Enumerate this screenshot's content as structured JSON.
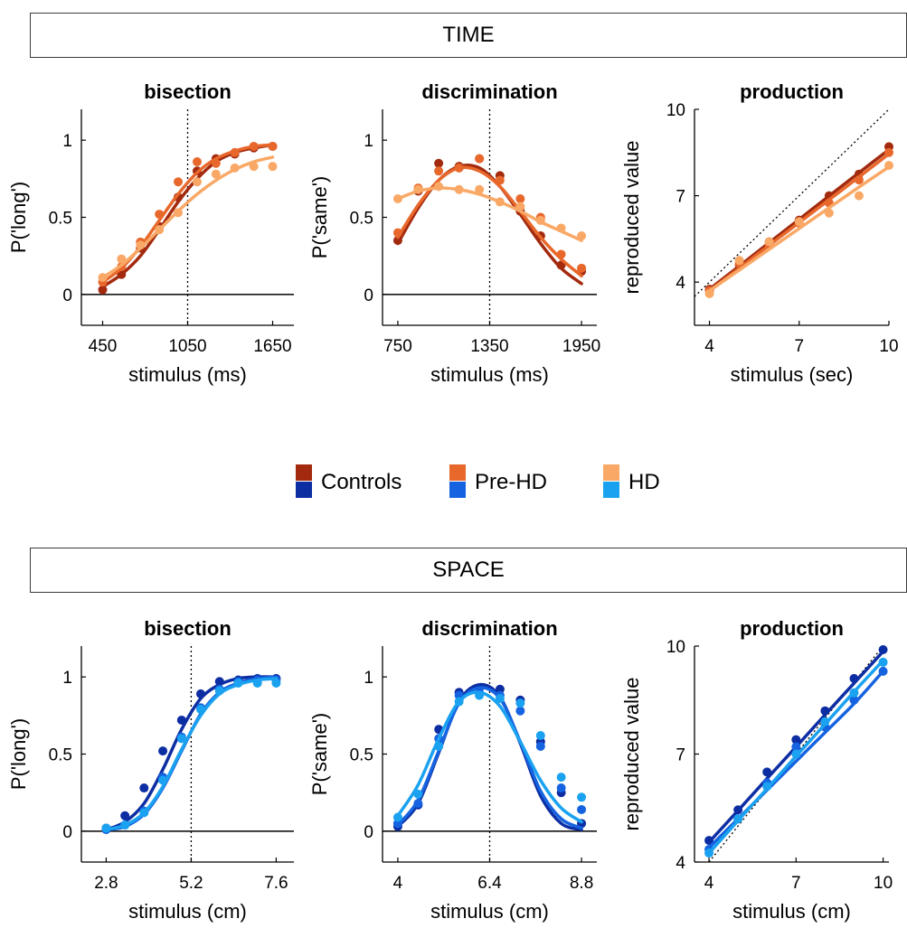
{
  "sections": {
    "time_label": "TIME",
    "space_label": "SPACE"
  },
  "legend": {
    "items": [
      {
        "label": "Controls",
        "time_color": "#a32a0e",
        "space_color": "#0d2ea3"
      },
      {
        "label": "Pre-HD",
        "time_color": "#e8682c",
        "space_color": "#1563e0"
      },
      {
        "label": "HD",
        "time_color": "#f9a866",
        "space_color": "#1aa2f0"
      }
    ]
  },
  "chart_data": [
    {
      "type": "line",
      "section": "time",
      "title": "bisection",
      "xlabel": "stimulus (ms)",
      "ylabel": "P('long')",
      "xlim": [
        300,
        1800
      ],
      "ylim": [
        -0.2,
        1.2
      ],
      "xticks": [
        450,
        1050,
        1650
      ],
      "xtick_labels": [
        "450",
        "1050",
        "1650"
      ],
      "yticks": [
        0,
        0.5,
        1
      ],
      "ytick_labels": [
        "0",
        "0.5",
        "1"
      ],
      "reference_vline": 1050,
      "reference_hline": 0,
      "x": [
        450,
        583,
        717,
        850,
        983,
        1117,
        1250,
        1383,
        1517,
        1650
      ],
      "series": [
        {
          "name": "Controls",
          "color": "#a32a0e",
          "points": [
            0.03,
            0.13,
            0.3,
            0.44,
            0.63,
            0.8,
            0.88,
            0.91,
            0.95,
            0.96
          ],
          "fit": [
            0.05,
            0.13,
            0.25,
            0.42,
            0.6,
            0.75,
            0.86,
            0.92,
            0.95,
            0.97
          ]
        },
        {
          "name": "Pre-HD",
          "color": "#e8682c",
          "points": [
            0.08,
            0.18,
            0.34,
            0.52,
            0.73,
            0.86,
            0.85,
            0.92,
            0.96,
            0.96
          ],
          "fit": [
            0.08,
            0.17,
            0.31,
            0.48,
            0.65,
            0.79,
            0.88,
            0.93,
            0.96,
            0.97
          ]
        },
        {
          "name": "HD",
          "color": "#f9a866",
          "points": [
            0.11,
            0.23,
            0.32,
            0.42,
            0.53,
            0.73,
            0.78,
            0.82,
            0.83,
            0.83
          ],
          "fit": [
            0.11,
            0.19,
            0.3,
            0.42,
            0.54,
            0.65,
            0.74,
            0.81,
            0.86,
            0.89
          ]
        }
      ]
    },
    {
      "type": "line",
      "section": "time",
      "title": "discrimination",
      "xlabel": "stimulus (ms)",
      "ylabel": "P('same')",
      "xlim": [
        650,
        2050
      ],
      "ylim": [
        -0.2,
        1.2
      ],
      "xticks": [
        750,
        1350,
        1950
      ],
      "xtick_labels": [
        "750",
        "1350",
        "1950"
      ],
      "yticks": [
        0,
        0.5,
        1
      ],
      "ytick_labels": [
        "0",
        "0.5",
        "1"
      ],
      "reference_vline": 1350,
      "reference_hline": 0,
      "x": [
        750,
        883,
        1017,
        1150,
        1283,
        1417,
        1550,
        1683,
        1817,
        1950
      ],
      "series": [
        {
          "name": "Controls",
          "color": "#a32a0e",
          "points": [
            0.35,
            0.67,
            0.85,
            0.83,
            0.88,
            0.77,
            0.54,
            0.38,
            0.19,
            0.15
          ],
          "fit": [
            0.33,
            0.56,
            0.74,
            0.83,
            0.82,
            0.7,
            0.52,
            0.33,
            0.17,
            0.07
          ]
        },
        {
          "name": "Pre-HD",
          "color": "#e8682c",
          "points": [
            0.4,
            0.69,
            0.8,
            0.82,
            0.88,
            0.74,
            0.62,
            0.5,
            0.26,
            0.17
          ],
          "fit": [
            0.37,
            0.58,
            0.74,
            0.82,
            0.8,
            0.7,
            0.54,
            0.37,
            0.23,
            0.12
          ]
        },
        {
          "name": "HD",
          "color": "#f9a866",
          "points": [
            0.62,
            0.68,
            0.7,
            0.68,
            0.68,
            0.6,
            0.57,
            0.48,
            0.43,
            0.38
          ],
          "fit": [
            0.62,
            0.67,
            0.69,
            0.68,
            0.65,
            0.6,
            0.54,
            0.47,
            0.41,
            0.35
          ]
        }
      ]
    },
    {
      "type": "line",
      "section": "time",
      "title": "production",
      "xlabel": "stimulus (sec)",
      "ylabel": "reproduced value",
      "xlim": [
        3.5,
        10
      ],
      "ylim": [
        2.5,
        10
      ],
      "xticks": [
        4,
        7,
        10
      ],
      "xtick_labels": [
        "4",
        "7",
        "10"
      ],
      "yticks": [
        4,
        7,
        10
      ],
      "ytick_labels": [
        "4",
        "7",
        "10"
      ],
      "identity_line": true,
      "x": [
        4,
        5,
        6,
        7,
        8,
        9,
        10
      ],
      "series": [
        {
          "name": "Controls",
          "color": "#a32a0e",
          "points": [
            3.75,
            4.6,
            5.4,
            6.15,
            7.0,
            7.75,
            8.7
          ],
          "fit": [
            3.75,
            4.56,
            5.37,
            6.18,
            6.99,
            7.8,
            8.6
          ]
        },
        {
          "name": "Pre-HD",
          "color": "#e8682c",
          "points": [
            3.7,
            4.65,
            5.3,
            6.05,
            6.75,
            7.55,
            8.5
          ],
          "fit": [
            3.7,
            4.49,
            5.28,
            6.07,
            6.86,
            7.65,
            8.45
          ]
        },
        {
          "name": "HD",
          "color": "#f9a866",
          "points": [
            3.6,
            4.75,
            5.4,
            6.1,
            6.4,
            7.0,
            8.05
          ],
          "fit": [
            3.7,
            4.42,
            5.14,
            5.86,
            6.58,
            7.3,
            8.0
          ]
        }
      ]
    },
    {
      "type": "line",
      "section": "space",
      "title": "bisection",
      "xlabel": "stimulus (cm)",
      "ylabel": "P('long')",
      "xlim": [
        2.1,
        8.1
      ],
      "ylim": [
        -0.2,
        1.2
      ],
      "xticks": [
        2.8,
        5.2,
        7.6
      ],
      "xtick_labels": [
        "2.8",
        "5.2",
        "7.6"
      ],
      "yticks": [
        0,
        0.5,
        1
      ],
      "ytick_labels": [
        "0",
        "0.5",
        "1"
      ],
      "reference_vline": 5.2,
      "reference_hline": 0,
      "x": [
        2.8,
        3.33,
        3.87,
        4.4,
        4.93,
        5.47,
        6.0,
        6.53,
        7.07,
        7.6
      ],
      "series": [
        {
          "name": "Controls",
          "color": "#0d2ea3",
          "points": [
            0.02,
            0.1,
            0.28,
            0.52,
            0.72,
            0.89,
            0.97,
            0.98,
            0.99,
            0.99
          ],
          "fit": [
            0.01,
            0.06,
            0.18,
            0.4,
            0.66,
            0.86,
            0.95,
            0.99,
            1.0,
            1.0
          ]
        },
        {
          "name": "Pre-HD",
          "color": "#1563e0",
          "points": [
            0.01,
            0.04,
            0.13,
            0.35,
            0.61,
            0.8,
            0.92,
            0.97,
            0.98,
            0.98
          ],
          "fit": [
            0.01,
            0.03,
            0.11,
            0.28,
            0.52,
            0.76,
            0.9,
            0.96,
            0.99,
            1.0
          ]
        },
        {
          "name": "HD",
          "color": "#1aa2f0",
          "points": [
            0.02,
            0.04,
            0.12,
            0.33,
            0.6,
            0.79,
            0.91,
            0.96,
            0.96,
            0.96
          ],
          "fit": [
            0.01,
            0.04,
            0.12,
            0.29,
            0.53,
            0.75,
            0.89,
            0.95,
            0.98,
            0.99
          ]
        }
      ]
    },
    {
      "type": "line",
      "section": "space",
      "title": "discrimination",
      "xlabel": "stimulus (cm)",
      "ylabel": "P('same')",
      "xlim": [
        3.6,
        9.2
      ],
      "ylim": [
        -0.2,
        1.2
      ],
      "xticks": [
        4,
        6.4,
        8.8
      ],
      "xtick_labels": [
        "4",
        "6.4",
        "8.8"
      ],
      "yticks": [
        0,
        0.5,
        1
      ],
      "ytick_labels": [
        "0",
        "0.5",
        "1"
      ],
      "reference_vline": 6.4,
      "reference_hline": 0,
      "x": [
        4,
        4.53,
        5.07,
        5.6,
        6.13,
        6.67,
        7.2,
        7.73,
        8.27,
        8.8
      ],
      "series": [
        {
          "name": "Controls",
          "color": "#0d2ea3",
          "points": [
            0.03,
            0.17,
            0.66,
            0.9,
            0.93,
            0.92,
            0.85,
            0.58,
            0.25,
            0.05
          ],
          "fit": [
            0.03,
            0.18,
            0.51,
            0.84,
            0.95,
            0.87,
            0.57,
            0.23,
            0.05,
            0.01
          ]
        },
        {
          "name": "Pre-HD",
          "color": "#1563e0",
          "points": [
            0.05,
            0.18,
            0.6,
            0.88,
            0.9,
            0.88,
            0.78,
            0.55,
            0.28,
            0.14
          ],
          "fit": [
            0.04,
            0.2,
            0.52,
            0.83,
            0.93,
            0.86,
            0.58,
            0.26,
            0.08,
            0.02
          ]
        },
        {
          "name": "HD",
          "color": "#1aa2f0",
          "points": [
            0.09,
            0.24,
            0.55,
            0.84,
            0.88,
            0.86,
            0.83,
            0.62,
            0.35,
            0.22
          ],
          "fit": [
            0.1,
            0.3,
            0.6,
            0.84,
            0.9,
            0.81,
            0.58,
            0.33,
            0.15,
            0.06
          ]
        }
      ]
    },
    {
      "type": "line",
      "section": "space",
      "title": "production",
      "xlabel": "stimulus (cm)",
      "ylabel": "reproduced value",
      "xlim": [
        3.5,
        10.2
      ],
      "ylim": [
        4,
        10
      ],
      "xticks": [
        4,
        7,
        10
      ],
      "xtick_labels": [
        "4",
        "7",
        "10"
      ],
      "yticks": [
        4,
        7,
        10
      ],
      "ytick_labels": [
        "4",
        "7",
        "10"
      ],
      "identity_line": true,
      "x": [
        4,
        5,
        6,
        7,
        8,
        9,
        10
      ],
      "series": [
        {
          "name": "Controls",
          "color": "#0d2ea3",
          "points": [
            4.6,
            5.45,
            6.5,
            7.4,
            8.2,
            9.1,
            9.9
          ],
          "fit": [
            4.55,
            5.43,
            6.32,
            7.2,
            8.09,
            8.97,
            9.85
          ]
        },
        {
          "name": "Pre-HD",
          "color": "#1563e0",
          "points": [
            4.35,
            5.2,
            6.2,
            7.2,
            7.75,
            8.5,
            9.3
          ],
          "fit": [
            4.4,
            5.2,
            6.0,
            6.8,
            7.6,
            8.4,
            9.3
          ]
        },
        {
          "name": "HD",
          "color": "#1aa2f0",
          "points": [
            4.25,
            5.2,
            6.1,
            7.0,
            7.9,
            8.7,
            9.55
          ],
          "fit": [
            4.25,
            5.15,
            6.04,
            6.94,
            7.83,
            8.73,
            9.6
          ]
        }
      ]
    }
  ]
}
